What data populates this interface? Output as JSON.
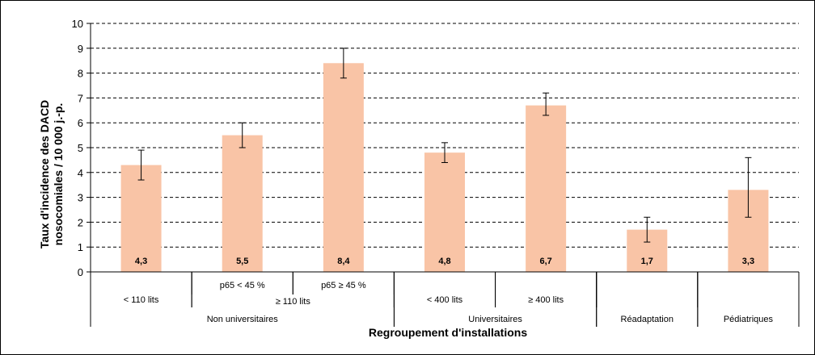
{
  "chart_data": {
    "type": "bar",
    "ylabel_line1": "Taux d'incidence des DACD",
    "ylabel_line2": "nosocomiales / 10 000 j.-p.",
    "xlabel": "Regroupement d'installations",
    "ylim": [
      0,
      10
    ],
    "yticks": [
      0,
      1,
      2,
      3,
      4,
      5,
      6,
      7,
      8,
      9,
      10
    ],
    "grid": true,
    "bar_color": "#F9C4A6",
    "values": [
      4.3,
      5.5,
      8.4,
      4.8,
      6.7,
      1.7,
      3.3
    ],
    "value_labels": [
      "4,3",
      "5,5",
      "8,4",
      "4,8",
      "6,7",
      "1,7",
      "3,3"
    ],
    "error_low": [
      3.7,
      5.0,
      7.8,
      4.4,
      6.3,
      1.2,
      2.2
    ],
    "error_high": [
      4.9,
      6.0,
      9.0,
      5.2,
      7.2,
      2.2,
      4.6
    ],
    "category_levels": {
      "level1": [
        {
          "label": "",
          "start": 0,
          "span": 1
        },
        {
          "label": "p65 < 45 %",
          "start": 1,
          "span": 1
        },
        {
          "label": "p65 ≥ 45 %",
          "start": 2,
          "span": 1
        },
        {
          "label": "",
          "start": 3,
          "span": 1
        },
        {
          "label": "",
          "start": 4,
          "span": 1
        },
        {
          "label": "",
          "start": 5,
          "span": 1
        },
        {
          "label": "",
          "start": 6,
          "span": 1
        }
      ],
      "level2": [
        {
          "label": "< 110 lits",
          "start": 0,
          "span": 1
        },
        {
          "label": "≥ 110 lits",
          "start": 1,
          "span": 2
        },
        {
          "label": "< 400 lits",
          "start": 3,
          "span": 1
        },
        {
          "label": "≥ 400 lits",
          "start": 4,
          "span": 1
        },
        {
          "label": "",
          "start": 5,
          "span": 1
        },
        {
          "label": "",
          "start": 6,
          "span": 1
        }
      ],
      "level3": [
        {
          "label": "Non universitaires",
          "start": 0,
          "span": 3
        },
        {
          "label": "Universitaires",
          "start": 3,
          "span": 2
        },
        {
          "label": "Réadaptation",
          "start": 5,
          "span": 1
        },
        {
          "label": "Pédiatriques",
          "start": 6,
          "span": 1
        }
      ]
    }
  }
}
